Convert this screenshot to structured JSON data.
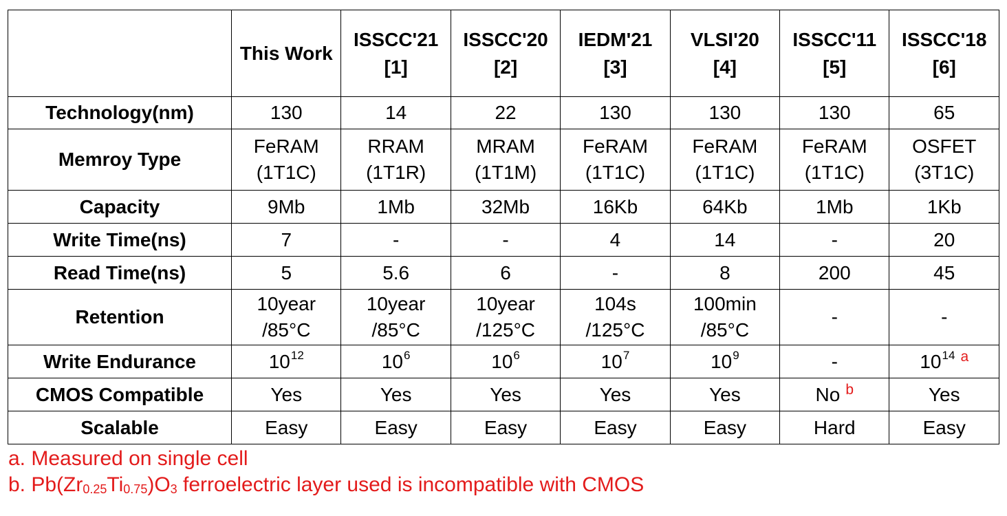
{
  "columns": [
    {
      "line1": "",
      "line2": ""
    },
    {
      "line1": "This Work",
      "line2": ""
    },
    {
      "line1": "ISSCC'21",
      "line2": "[1]"
    },
    {
      "line1": "ISSCC'20",
      "line2": "[2]"
    },
    {
      "line1": "IEDM'21",
      "line2": "[3]"
    },
    {
      "line1": "VLSI'20",
      "line2": "[4]"
    },
    {
      "line1": "ISSCC'11",
      "line2": "[5]"
    },
    {
      "line1": "ISSCC'18",
      "line2": "[6]"
    }
  ],
  "rows": {
    "technology": {
      "label": "Technology(nm)",
      "values": [
        "130",
        "14",
        "22",
        "130",
        "130",
        "130",
        "65"
      ]
    },
    "memory_type": {
      "label": "Memroy Type",
      "values": [
        {
          "line1": "FeRAM",
          "line2": "(1T1C)"
        },
        {
          "line1": "RRAM",
          "line2": "(1T1R)"
        },
        {
          "line1": "MRAM",
          "line2": "(1T1M)"
        },
        {
          "line1": "FeRAM",
          "line2": "(1T1C)"
        },
        {
          "line1": "FeRAM",
          "line2": "(1T1C)"
        },
        {
          "line1": "FeRAM",
          "line2": "(1T1C)"
        },
        {
          "line1": "OSFET",
          "line2": "(3T1C)"
        }
      ]
    },
    "capacity": {
      "label": "Capacity",
      "values": [
        "9Mb",
        "1Mb",
        "32Mb",
        "16Kb",
        "64Kb",
        "1Mb",
        "1Kb"
      ]
    },
    "write_time": {
      "label": "Write Time(ns)",
      "values": [
        "7",
        "-",
        "-",
        "4",
        "14",
        "-",
        "20"
      ]
    },
    "read_time": {
      "label": "Read Time(ns)",
      "values": [
        "5",
        "5.6",
        "6",
        "-",
        "8",
        "200",
        "45"
      ]
    },
    "retention": {
      "label": "Retention",
      "values": [
        {
          "line1": "10year",
          "line2": "/85°C"
        },
        {
          "line1": "10year",
          "line2": "/85°C"
        },
        {
          "line1": "10year",
          "line2": "/125°C"
        },
        {
          "line1": "104s",
          "line2": "/125°C"
        },
        {
          "line1": "100min",
          "line2": "/85°C"
        },
        {
          "line1": "-",
          "line2": ""
        },
        {
          "line1": "-",
          "line2": ""
        }
      ]
    },
    "write_endurance": {
      "label": "Write Endurance",
      "values": [
        {
          "base": "10",
          "exp": "12",
          "note": ""
        },
        {
          "base": "10",
          "exp": "6",
          "note": ""
        },
        {
          "base": "10",
          "exp": "6",
          "note": ""
        },
        {
          "base": "10",
          "exp": "7",
          "note": ""
        },
        {
          "base": "10",
          "exp": "9",
          "note": ""
        },
        {
          "base": "-",
          "exp": "",
          "note": ""
        },
        {
          "base": "10",
          "exp": "14",
          "note": "a"
        }
      ]
    },
    "cmos_compatible": {
      "label": "CMOS Compatible",
      "values": [
        {
          "text": "Yes",
          "note": ""
        },
        {
          "text": "Yes",
          "note": ""
        },
        {
          "text": "Yes",
          "note": ""
        },
        {
          "text": "Yes",
          "note": ""
        },
        {
          "text": "Yes",
          "note": ""
        },
        {
          "text": "No",
          "note": "b"
        },
        {
          "text": "Yes",
          "note": ""
        }
      ]
    },
    "scalable": {
      "label": "Scalable",
      "values": [
        "Easy",
        "Easy",
        "Easy",
        "Easy",
        "Easy",
        "Hard",
        "Easy"
      ]
    }
  },
  "footnotes": {
    "a": "a. Measured on single cell",
    "b": {
      "prefix": "b. Pb(Zr",
      "sub1": "0.25",
      "mid1": "Ti",
      "sub2": "0.75",
      "mid2": ")O",
      "sub3": "3",
      "suffix": " ferroelectric layer used is incompatible with CMOS"
    }
  },
  "colors": {
    "text": "#000000",
    "footnote": "#e31b1b",
    "border": "#000000",
    "background": "#ffffff"
  }
}
